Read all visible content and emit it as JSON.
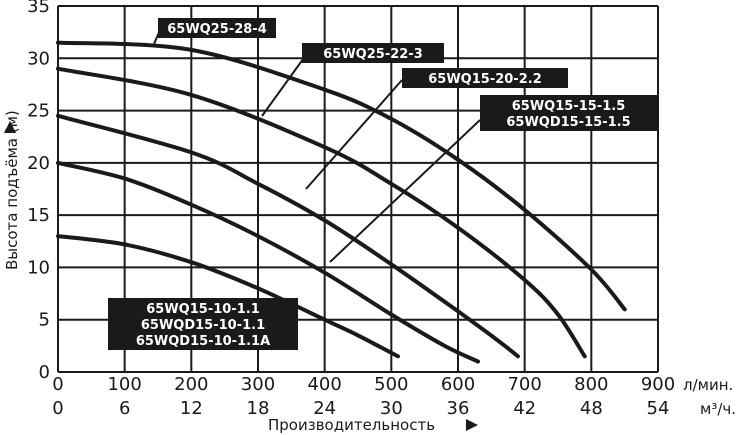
{
  "chart_data": {
    "type": "line",
    "ylabel": "Высота подъёма (м)",
    "xlabel": "Производительность",
    "x_unit_primary": "л/мин.",
    "x_unit_secondary": "м³/ч.",
    "xlim": [
      0,
      900
    ],
    "ylim": [
      0,
      35
    ],
    "x_ticks_primary": [
      "0",
      "100",
      "200",
      "300",
      "400",
      "500",
      "600",
      "700",
      "800",
      "900"
    ],
    "x_ticks_secondary": [
      "0",
      "6",
      "12",
      "18",
      "24",
      "30",
      "36",
      "42",
      "48",
      "54"
    ],
    "y_ticks": [
      "0",
      "5",
      "10",
      "15",
      "20",
      "25",
      "30",
      "35"
    ],
    "grid": true,
    "series": [
      {
        "name": "65WQ25-28-4",
        "x": [
          0,
          200,
          400,
          500,
          600,
          700,
          800,
          850
        ],
        "y": [
          31.5,
          30.8,
          27.0,
          24.2,
          20.3,
          15.5,
          9.8,
          6.0
        ]
      },
      {
        "name": "65WQ25-22-3",
        "x": [
          0,
          200,
          400,
          500,
          600,
          700,
          750,
          790
        ],
        "y": [
          29.0,
          26.5,
          21.5,
          18.0,
          13.8,
          8.8,
          5.5,
          1.5
        ]
      },
      {
        "name": "65WQ15-20-2.2",
        "x": [
          0,
          200,
          300,
          400,
          500,
          600,
          660,
          690
        ],
        "y": [
          24.5,
          21.0,
          18.0,
          14.5,
          10.3,
          5.8,
          3.0,
          1.5
        ]
      },
      {
        "name": "65WQ15-15-1.5 / 65WQD15-15-1.5",
        "x": [
          0,
          100,
          200,
          300,
          400,
          500,
          580,
          630
        ],
        "y": [
          20.0,
          18.5,
          16.0,
          13.0,
          9.5,
          5.5,
          2.5,
          1.0
        ]
      },
      {
        "name": "65WQ15-10-1.1 / 65WQD15-10-1.1 / 65WQD15-10-1.1A",
        "x": [
          0,
          100,
          200,
          300,
          400,
          450,
          510
        ],
        "y": [
          13.0,
          12.2,
          10.5,
          8.0,
          5.0,
          3.5,
          1.5
        ]
      }
    ],
    "labels": [
      {
        "id": "l1",
        "lines": [
          "65WQ25-28-4"
        ]
      },
      {
        "id": "l2",
        "lines": [
          "65WQ25-22-3"
        ]
      },
      {
        "id": "l3",
        "lines": [
          "65WQ15-20-2.2"
        ]
      },
      {
        "id": "l4",
        "lines": [
          "65WQ15-15-1.5",
          "65WQD15-15-1.5"
        ]
      },
      {
        "id": "l5",
        "lines": [
          "65WQ15-10-1.1",
          "65WQD15-10-1.1",
          "65WQD15-10-1.1A"
        ]
      }
    ]
  }
}
